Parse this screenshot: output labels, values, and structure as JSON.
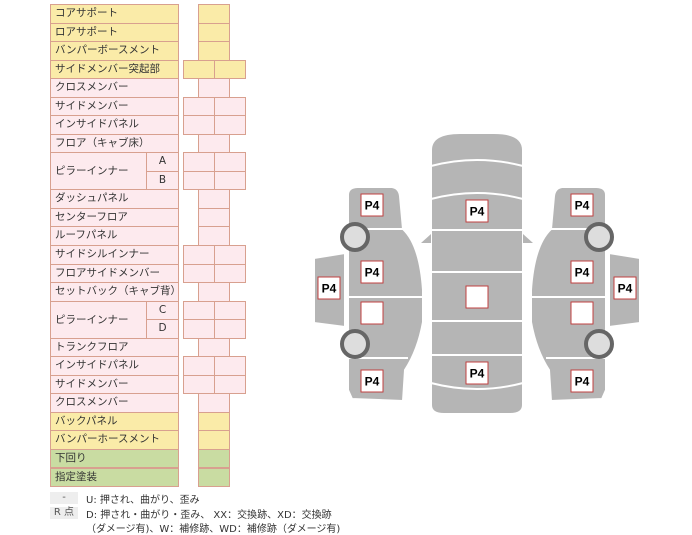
{
  "colors": {
    "yellow": "#faeba8",
    "pink": "#fdeaee",
    "green": "#c9dca2",
    "border": "#d8a08f",
    "car": "#b5b5b5"
  },
  "rows": [
    {
      "label": "コアサポート",
      "color": "yellow",
      "cells": 1
    },
    {
      "label": "ロアサポート",
      "color": "yellow",
      "cells": 1
    },
    {
      "label": "バンパーボースメント",
      "color": "yellow",
      "cells": 1
    },
    {
      "label": "サイドメンバー突起部",
      "color": "yellow",
      "cells": 2
    },
    {
      "label": "クロスメンバー",
      "color": "pink",
      "cells": 1
    },
    {
      "label": "サイドメンバー",
      "color": "pink",
      "cells": 2
    },
    {
      "label": "インサイドパネル",
      "color": "pink",
      "cells": 2
    },
    {
      "label": "フロア（キャブ床）",
      "color": "pink",
      "cells": 1
    },
    {
      "label": "ピラーインナー",
      "sub": "A",
      "color": "pink",
      "cells": 2,
      "span": 2
    },
    {
      "label": "",
      "sub": "B",
      "color": "pink",
      "cells": 2
    },
    {
      "label": "ダッシュパネル",
      "color": "pink",
      "cells": 1
    },
    {
      "label": "センターフロア",
      "color": "pink",
      "cells": 1
    },
    {
      "label": "ルーフパネル",
      "color": "pink",
      "cells": 1
    },
    {
      "label": "サイドシルインナー",
      "color": "pink",
      "cells": 2
    },
    {
      "label": "フロアサイドメンバー",
      "color": "pink",
      "cells": 2
    },
    {
      "label": "セットバック（キャブ背）",
      "color": "pink",
      "cells": 1
    },
    {
      "label": "ピラーインナー",
      "sub": "C",
      "color": "pink",
      "cells": 2,
      "span": 2
    },
    {
      "label": "",
      "sub": "D",
      "color": "pink",
      "cells": 2
    },
    {
      "label": "トランクフロア",
      "color": "pink",
      "cells": 1
    },
    {
      "label": "インサイドパネル",
      "color": "pink",
      "cells": 2
    },
    {
      "label": "サイドメンバー",
      "color": "pink",
      "cells": 2
    },
    {
      "label": "クロスメンバー",
      "color": "pink",
      "cells": 1
    },
    {
      "label": "バックパネル",
      "color": "yellow",
      "cells": 1
    },
    {
      "label": "バンパーホースメント",
      "color": "yellow",
      "cells": 1
    },
    {
      "label": "下回り",
      "color": "green",
      "cells": 1
    },
    {
      "label": "指定塗装",
      "color": "green",
      "cells": 1
    }
  ],
  "legend": [
    {
      "key": "-",
      "text": "U: 押され、曲がり、歪み"
    },
    {
      "key": "R 点",
      "text": "D: 押され・曲がり・歪み、 XX：交換跡、XD：交換跡"
    },
    {
      "key": "",
      "text": "（ダメージ有)、W：補修跡、WD：補修跡（ダメージ有)"
    }
  ],
  "diagram": {
    "marks": [
      "P4",
      "P4",
      "P4",
      "P4",
      "",
      "P4",
      "P4",
      "P4",
      "P4",
      "",
      "P4",
      "P4",
      "",
      "P4"
    ]
  }
}
